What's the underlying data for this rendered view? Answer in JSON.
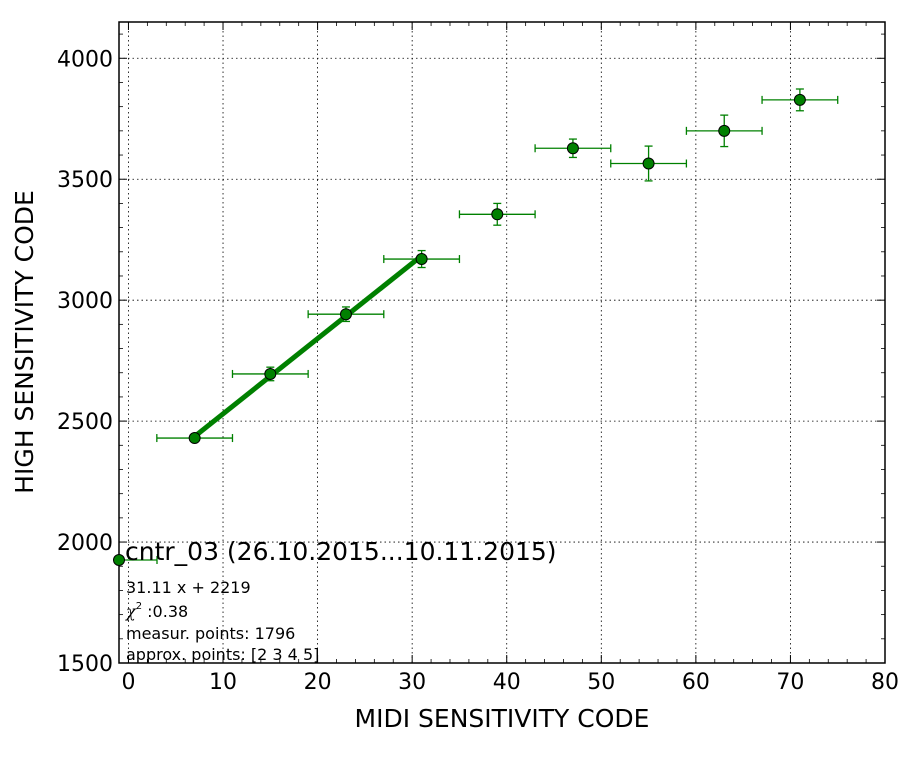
{
  "chart_data": {
    "type": "scatter",
    "xlabel": "MIDI SENSITIVITY CODE",
    "ylabel": "HIGH SENSITIVITY CODE",
    "xlim": [
      -1,
      80
    ],
    "ylim": [
      1500,
      4150
    ],
    "xticks": [
      0,
      10,
      20,
      30,
      40,
      50,
      60,
      70,
      80
    ],
    "yticks": [
      1500,
      2000,
      2500,
      3000,
      3500,
      4000
    ],
    "grid": true,
    "color": "#008000",
    "series": [
      {
        "x": [
          7,
          15,
          23,
          31,
          39,
          47,
          55,
          63,
          71
        ],
        "y": [
          2430,
          2695,
          2942,
          3170,
          3355,
          3628,
          3565,
          3700,
          3828
        ],
        "xerr": [
          4,
          4,
          4,
          4,
          4,
          4,
          4,
          4,
          4
        ],
        "yerr": [
          12,
          28,
          30,
          35,
          45,
          38,
          72,
          65,
          45
        ]
      }
    ],
    "fit": {
      "slope": 31.11,
      "intercept": 2219,
      "x_range": [
        7,
        31
      ]
    },
    "legend": {
      "placement": "lower-left",
      "title": "cntr_03 (26.10.2015...10.11.2015)",
      "formula": "31.11 x + 2219",
      "chi2_symbol": "χ",
      "chi2_exp": "2",
      "chi2_value": " :0.38",
      "measur_points": "measur. points: 1796",
      "approx_points": "approx. points: [2 3 4 5]"
    }
  }
}
